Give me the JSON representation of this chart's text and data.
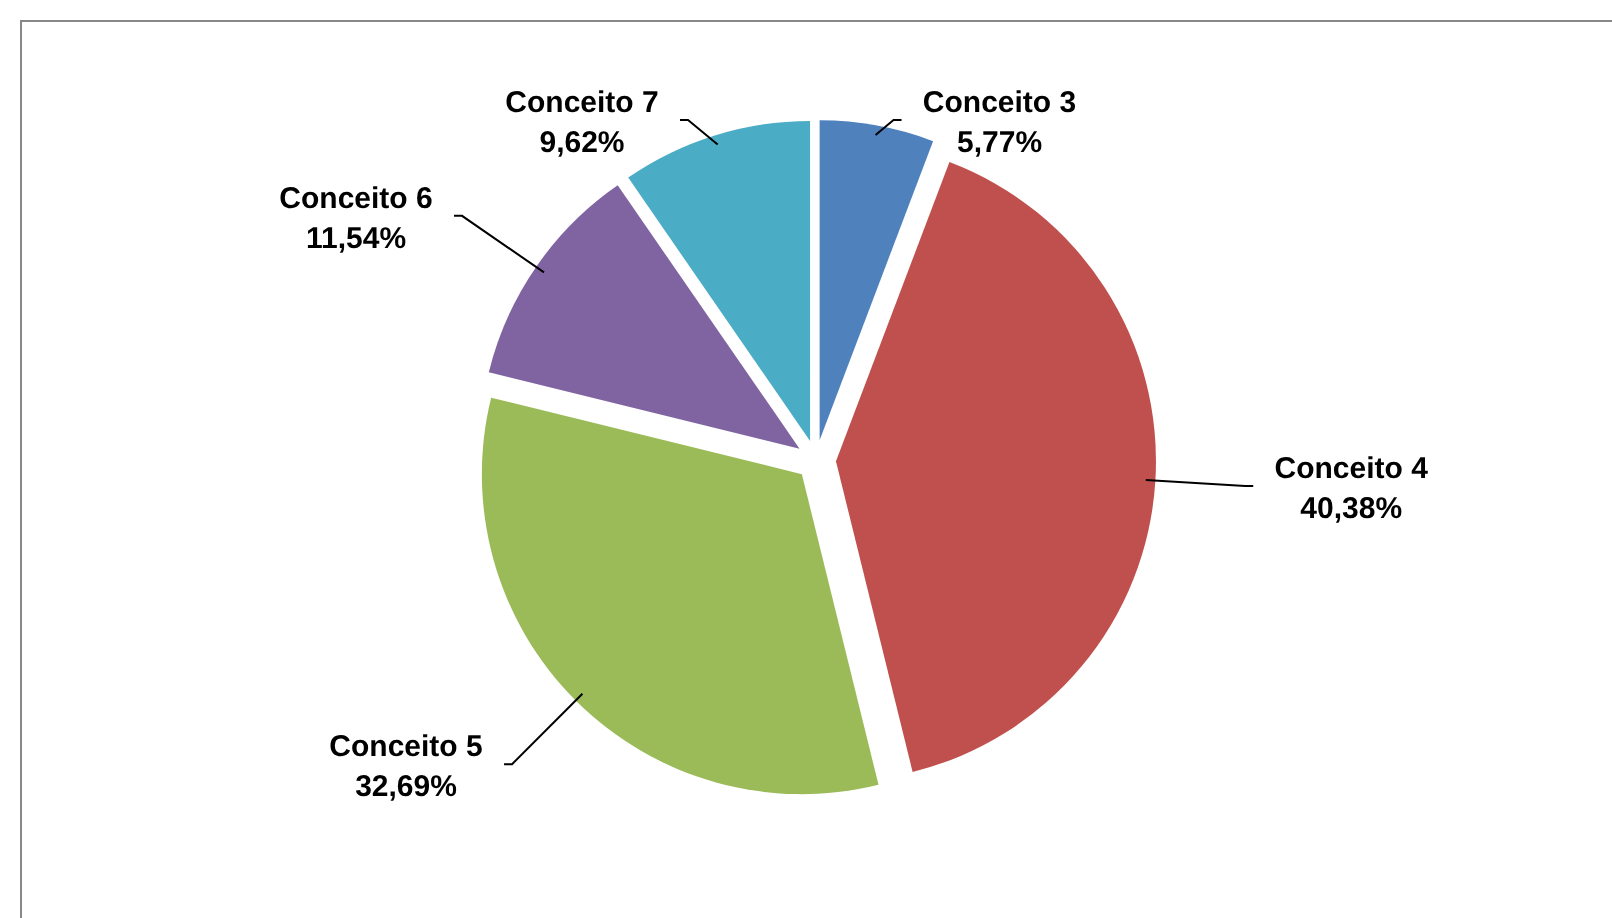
{
  "chart_data": {
    "type": "pie",
    "categories": [
      "Conceito 3",
      "Conceito 4",
      "Conceito 5",
      "Conceito 6",
      "Conceito 7"
    ],
    "values": [
      5.77,
      40.38,
      32.69,
      11.54,
      9.62
    ],
    "colors": [
      "#4f81bd",
      "#c0504d",
      "#9bbb59",
      "#8064a2",
      "#4bacc6"
    ],
    "value_labels": [
      "5,77%",
      "40,38%",
      "32,69%",
      "11,54%",
      "9,62%"
    ]
  }
}
